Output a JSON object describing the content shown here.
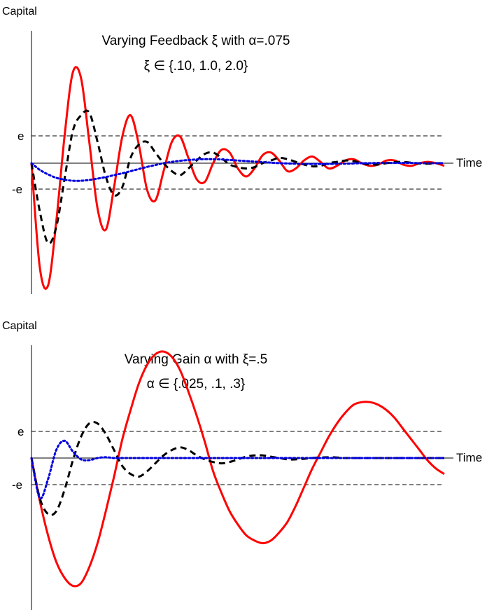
{
  "chart_data": [
    {
      "type": "line",
      "ylabel": "Capital",
      "xlabel": "Time",
      "title": "Varying Feedback ξ with α=.075",
      "subtitle": "ξ ∈ {.10, 1.0, 2.0}",
      "x_domain": [
        0,
        50
      ],
      "ylim": [
        -4.7,
        4.9
      ],
      "threshold": 1,
      "threshold_labels": [
        "e",
        "-e"
      ],
      "series": [
        {
          "color": "#ff0000",
          "style": "solid",
          "x": [
            0,
            1,
            2,
            3,
            4,
            5,
            6,
            7,
            8,
            9,
            10,
            11,
            12,
            13,
            14,
            15,
            16,
            17,
            18,
            19,
            20,
            21,
            22,
            23,
            24,
            25,
            26,
            27,
            28,
            29,
            30,
            31,
            32,
            33,
            34,
            35,
            36,
            37,
            38,
            39,
            40,
            41,
            42,
            43,
            44,
            45,
            46,
            47,
            48,
            49,
            50
          ],
          "y": [
            0,
            -3.9,
            -4.6,
            -2.2,
            1.0,
            3.4,
            3.2,
            0.8,
            -1.7,
            -2.5,
            -0.9,
            1.0,
            1.8,
            0.7,
            -1.0,
            -1.4,
            -0.3,
            0.8,
            1.0,
            0.2,
            -0.6,
            -0.7,
            0.0,
            0.5,
            0.4,
            -0.2,
            -0.5,
            -0.2,
            0.3,
            0.4,
            0.1,
            -0.3,
            -0.2,
            0.1,
            0.25,
            0.05,
            -0.2,
            -0.1,
            0.1,
            0.15,
            0.0,
            -0.1,
            -0.05,
            0.1,
            0.1,
            -0.05,
            -0.1,
            0.0,
            0.05,
            0.0,
            -0.1
          ]
        },
        {
          "color": "#000000",
          "style": "dashed",
          "x": [
            0,
            1,
            2,
            3,
            4,
            5,
            6,
            7,
            8,
            9,
            10,
            11,
            12,
            13,
            14,
            15,
            16,
            17,
            18,
            19,
            20,
            21,
            22,
            23,
            24,
            25,
            26,
            27,
            28,
            29,
            30,
            31,
            32,
            33,
            34,
            35,
            36,
            37,
            38,
            39,
            40,
            41,
            42,
            43,
            44,
            45,
            46,
            47,
            48,
            49,
            50
          ],
          "y": [
            0,
            -1.8,
            -3.0,
            -2.4,
            -0.6,
            1.2,
            1.8,
            1.9,
            0.8,
            -0.5,
            -1.2,
            -0.9,
            0.2,
            0.7,
            0.8,
            0.4,
            0.0,
            -0.3,
            -0.45,
            -0.2,
            0.1,
            0.35,
            0.4,
            0.2,
            -0.05,
            -0.15,
            -0.2,
            -0.15,
            0.0,
            0.1,
            0.2,
            0.15,
            0.05,
            -0.05,
            -0.12,
            -0.1,
            0.0,
            0.05,
            0.1,
            0.08,
            0.0,
            -0.05,
            -0.05,
            0.0,
            0.04,
            0.05,
            0.02,
            -0.01,
            -0.02,
            0.0,
            0.0
          ]
        },
        {
          "color": "#0000dd",
          "style": "dotted",
          "x": [
            0,
            1,
            2,
            3,
            4,
            5,
            6,
            7,
            8,
            9,
            10,
            11,
            12,
            13,
            14,
            15,
            16,
            17,
            18,
            19,
            20,
            21,
            22,
            23,
            24,
            25,
            26,
            27,
            28,
            29,
            30,
            31,
            32,
            33,
            34,
            35,
            36,
            37,
            38,
            39,
            40,
            41,
            42,
            43,
            44,
            45,
            46,
            47,
            48,
            49,
            50
          ],
          "y": [
            0,
            -0.25,
            -0.42,
            -0.55,
            -0.62,
            -0.66,
            -0.66,
            -0.63,
            -0.58,
            -0.52,
            -0.45,
            -0.38,
            -0.3,
            -0.22,
            -0.14,
            -0.07,
            0.0,
            0.05,
            0.09,
            0.12,
            0.14,
            0.15,
            0.15,
            0.14,
            0.12,
            0.1,
            0.08,
            0.06,
            0.04,
            0.02,
            0.0,
            -0.01,
            -0.02,
            -0.03,
            -0.03,
            -0.03,
            -0.03,
            -0.02,
            -0.02,
            -0.01,
            0.0,
            0.0,
            0.01,
            0.01,
            0.01,
            0.01,
            0.01,
            0.0,
            0.0,
            0.0,
            0.0
          ]
        }
      ]
    },
    {
      "type": "line",
      "ylabel": "Capital",
      "xlabel": "Time",
      "title": "Varying Gain α with ξ=.5",
      "subtitle": "α ∈ {.025, .1, .3}",
      "x_domain": [
        0,
        50
      ],
      "ylim": [
        -5.5,
        4.7
      ],
      "threshold": 1,
      "threshold_labels": [
        "e",
        "-e"
      ],
      "series": [
        {
          "color": "#ff0000",
          "style": "solid",
          "x": [
            0,
            1,
            2,
            3,
            4,
            5,
            6,
            7,
            8,
            9,
            10,
            11,
            12,
            13,
            14,
            15,
            16,
            17,
            18,
            19,
            20,
            21,
            22,
            23,
            24,
            25,
            26,
            27,
            28,
            29,
            30,
            31,
            32,
            33,
            34,
            35,
            36,
            37,
            38,
            39,
            40,
            41,
            42,
            43,
            44,
            45,
            46,
            47,
            48,
            49,
            50
          ],
          "y": [
            0,
            -1.6,
            -2.9,
            -3.9,
            -4.5,
            -4.8,
            -4.7,
            -4.1,
            -3.2,
            -2.0,
            -0.7,
            0.7,
            1.8,
            2.8,
            3.5,
            3.9,
            4.0,
            3.8,
            3.3,
            2.5,
            1.6,
            0.6,
            -0.5,
            -1.3,
            -2.0,
            -2.5,
            -2.9,
            -3.1,
            -3.2,
            -3.1,
            -2.8,
            -2.4,
            -1.8,
            -1.1,
            -0.4,
            0.2,
            0.8,
            1.3,
            1.7,
            2.0,
            2.1,
            2.1,
            2.0,
            1.8,
            1.5,
            1.1,
            0.7,
            0.3,
            -0.1,
            -0.4,
            -0.6
          ]
        },
        {
          "color": "#000000",
          "style": "dashed",
          "x": [
            0,
            1,
            2,
            3,
            4,
            5,
            6,
            7,
            8,
            9,
            10,
            11,
            12,
            13,
            14,
            15,
            16,
            17,
            18,
            19,
            20,
            21,
            22,
            23,
            24,
            25,
            26,
            27,
            28,
            29,
            30,
            31,
            32,
            33,
            34,
            35,
            36,
            37,
            38,
            39,
            40,
            41,
            42,
            43,
            44,
            45,
            46,
            47,
            48,
            49,
            50
          ],
          "y": [
            0,
            -1.5,
            -2.1,
            -2.0,
            -1.2,
            -0.1,
            0.8,
            1.3,
            1.3,
            0.9,
            0.3,
            -0.3,
            -0.6,
            -0.7,
            -0.5,
            -0.2,
            0.1,
            0.3,
            0.4,
            0.3,
            0.1,
            -0.05,
            -0.15,
            -0.2,
            -0.15,
            -0.05,
            0.05,
            0.1,
            0.1,
            0.05,
            0.0,
            -0.05,
            -0.05,
            -0.03,
            0.0,
            0.02,
            0.03,
            0.02,
            0.0,
            0.0,
            0.0,
            0.0,
            0.0,
            0.0,
            0.0,
            0.0,
            0.0,
            0.0,
            0.0,
            0.0,
            0.0
          ]
        },
        {
          "color": "#0000dd",
          "style": "dotted",
          "x": [
            0,
            1,
            2,
            3,
            4,
            5,
            6,
            7,
            8,
            9,
            10,
            11,
            12,
            13,
            14,
            15,
            16,
            17,
            18,
            19,
            20,
            21,
            22,
            23,
            24,
            25,
            26,
            27,
            28,
            29,
            30,
            31,
            32,
            33,
            34,
            35,
            36,
            37,
            38,
            39,
            40,
            41,
            42,
            43,
            44,
            45,
            46,
            47,
            48,
            49,
            50
          ],
          "y": [
            0,
            -1.5,
            -0.8,
            0.3,
            0.65,
            0.25,
            -0.05,
            -0.08,
            0.0,
            0.03,
            0.0,
            0.0,
            0.0,
            0.0,
            0.0,
            0.0,
            0.0,
            0.0,
            0.0,
            0.0,
            0.0,
            0.0,
            0.0,
            0.0,
            0.0,
            0.0,
            0.0,
            0.0,
            0.0,
            0.0,
            0.0,
            0.0,
            0.0,
            0.0,
            0.0,
            0.0,
            0.0,
            0.0,
            0.0,
            0.0,
            0.0,
            0.0,
            0.0,
            0.0,
            0.0,
            0.0,
            0.0,
            0.0,
            0.0,
            0.0,
            0.0
          ]
        }
      ]
    }
  ]
}
